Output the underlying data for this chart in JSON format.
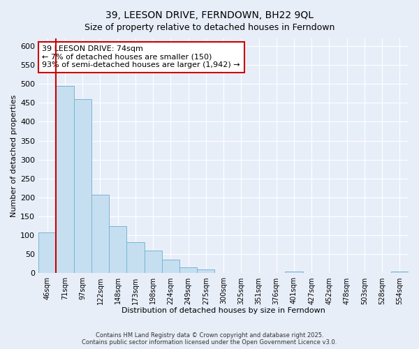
{
  "title": "39, LEESON DRIVE, FERNDOWN, BH22 9QL",
  "subtitle": "Size of property relative to detached houses in Ferndown",
  "xlabel": "Distribution of detached houses by size in Ferndown",
  "ylabel": "Number of detached properties",
  "bar_color": "#c5dff0",
  "bar_edge_color": "#7ab4d4",
  "categories": [
    "46sqm",
    "71sqm",
    "97sqm",
    "122sqm",
    "148sqm",
    "173sqm",
    "198sqm",
    "224sqm",
    "249sqm",
    "275sqm",
    "300sqm",
    "325sqm",
    "351sqm",
    "376sqm",
    "401sqm",
    "427sqm",
    "452sqm",
    "478sqm",
    "503sqm",
    "528sqm",
    "554sqm"
  ],
  "values": [
    107,
    495,
    460,
    208,
    125,
    82,
    59,
    36,
    15,
    10,
    0,
    0,
    0,
    0,
    5,
    0,
    0,
    0,
    0,
    0,
    5
  ],
  "ylim": [
    0,
    620
  ],
  "yticks": [
    0,
    50,
    100,
    150,
    200,
    250,
    300,
    350,
    400,
    450,
    500,
    550,
    600
  ],
  "property_line_bin": 1,
  "property_line_color": "#cc0000",
  "annotation_title": "39 LEESON DRIVE: 74sqm",
  "annotation_line1": "← 7% of detached houses are smaller (150)",
  "annotation_line2": "93% of semi-detached houses are larger (1,942) →",
  "annotation_box_color": "#ffffff",
  "annotation_box_edge": "#cc0000",
  "footer_line1": "Contains HM Land Registry data © Crown copyright and database right 2025.",
  "footer_line2": "Contains public sector information licensed under the Open Government Licence v3.0.",
  "background_color": "#e8eef8",
  "grid_color": "#ffffff",
  "title_fontsize": 10,
  "subtitle_fontsize": 9
}
